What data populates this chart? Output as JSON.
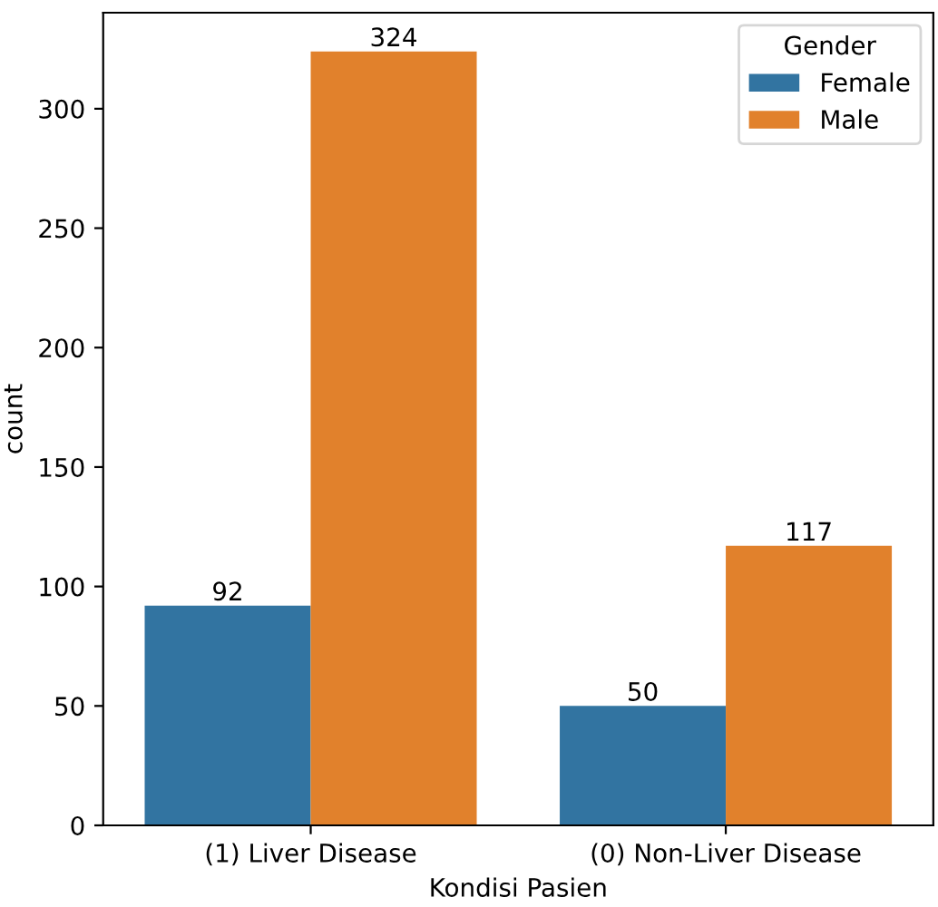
{
  "chart_data": {
    "type": "bar",
    "xlabel": "Kondisi Pasien",
    "ylabel": "count",
    "legend_title": "Gender",
    "categories": [
      "(1) Liver Disease",
      "(0) Non-Liver Disease"
    ],
    "series": [
      {
        "name": "Female",
        "color": "#3274a1",
        "values": [
          92,
          50
        ]
      },
      {
        "name": "Male",
        "color": "#e1812c",
        "values": [
          324,
          117
        ]
      }
    ],
    "ylim": [
      0,
      340.2
    ],
    "yticks": [
      0,
      50,
      100,
      150,
      200,
      250,
      300
    ],
    "grid": false,
    "legend": "top right",
    "data_labels": true
  }
}
